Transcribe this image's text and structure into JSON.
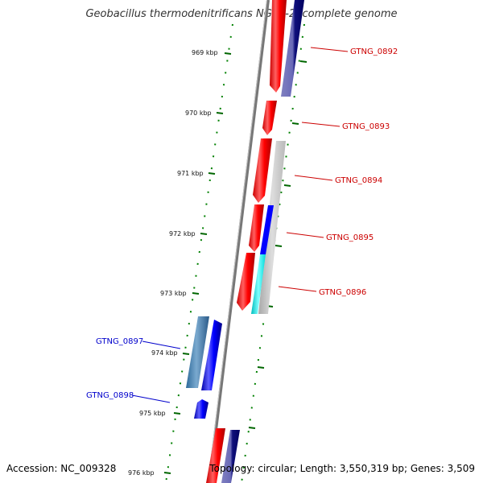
{
  "map_title": "Geobacillus thermodenitrificans NG80-2, complete genome",
  "footer": {
    "accession": "Accession: NC_009328",
    "summary": "Topology: circular; Length: 3,550,319 bp; Genes: 3,509"
  },
  "colors": {
    "forward_gene": "#ff0000",
    "reverse_gene": "#0000ff",
    "label_forward": "#cc0000",
    "label_reverse": "#0000cc",
    "axis": "#888888",
    "tick": "#006600"
  },
  "scale_ticks": [
    "969 kbp",
    "970 kbp",
    "971 kbp",
    "972 kbp",
    "973 kbp",
    "974 kbp",
    "975 kbp",
    "976 kbp"
  ],
  "gene_labels": [
    {
      "text": "GTNG_0892",
      "strand": "forward"
    },
    {
      "text": "GTNG_0893",
      "strand": "forward"
    },
    {
      "text": "GTNG_0894",
      "strand": "forward"
    },
    {
      "text": "GTNG_0895",
      "strand": "forward"
    },
    {
      "text": "GTNG_0896",
      "strand": "forward"
    },
    {
      "text": "GTNG_0897",
      "strand": "reverse"
    },
    {
      "text": "GTNG_0898",
      "strand": "reverse"
    }
  ]
}
